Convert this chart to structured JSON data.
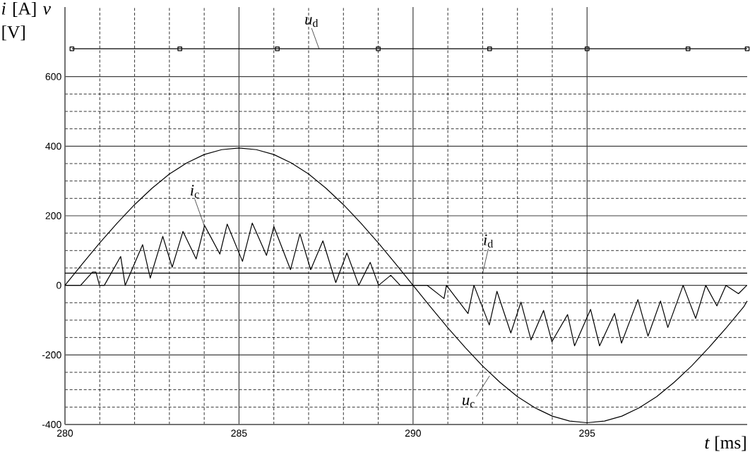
{
  "chart_data": {
    "type": "line",
    "xlabel": "*t* [ms]",
    "ylabel": "*i* [A] *v* [V]",
    "xlim": [
      280,
      299.6
    ],
    "ylim": [
      -400,
      800
    ],
    "xticks": [
      280,
      285,
      290,
      295
    ],
    "yticks": [
      -400,
      -200,
      0,
      200,
      400,
      600
    ],
    "grid": true,
    "line_style": "solid",
    "series": [
      {
        "color": "#000000",
        "marker": "square",
        "x": [
          280.2,
          283.3,
          286.1,
          289.0,
          292.2,
          295.0,
          297.9,
          299.6
        ],
        "values": [
          680,
          680,
          680,
          680,
          680,
          680,
          680,
          680
        ]
      },
      {
        "color": "#000000",
        "marker": "none",
        "x": [
          280,
          281,
          282,
          283,
          284,
          285,
          286,
          287,
          288,
          289,
          290,
          291,
          292,
          293,
          294,
          295,
          296,
          297,
          298,
          299,
          299.6
        ],
        "values": [
          35,
          35,
          35,
          35,
          35,
          35,
          35,
          35,
          35,
          35,
          35,
          35,
          35,
          35,
          35,
          35,
          35,
          35,
          35,
          35,
          35
        ]
      },
      {
        "color": "#000000",
        "marker": "none",
        "x": [
          280,
          280.5,
          281,
          281.5,
          282,
          282.5,
          283,
          283.5,
          284,
          284.5,
          285,
          285.5,
          286,
          286.5,
          287,
          287.5,
          288,
          288.5,
          289,
          289.5,
          290,
          290.5,
          291,
          291.5,
          292,
          292.5,
          293,
          293.5,
          294,
          294.5,
          295,
          295.5,
          296,
          296.5,
          297,
          297.5,
          298,
          298.5,
          299,
          299.5,
          299.6
        ],
        "values": [
          0,
          62,
          122,
          179,
          232,
          279,
          320,
          352,
          376,
          390,
          395,
          390,
          376,
          352,
          320,
          279,
          232,
          179,
          122,
          62,
          0,
          -62,
          -122,
          -179,
          -232,
          -279,
          -320,
          -352,
          -376,
          -390,
          -395,
          -390,
          -376,
          -352,
          -320,
          -279,
          -232,
          -179,
          -122,
          -62,
          -45
        ]
      },
      {
        "color": "#000000",
        "marker": "none",
        "x": [
          280,
          280.45,
          280.79,
          280.89,
          280.99,
          281.13,
          281.6,
          281.73,
          282.23,
          282.45,
          282.81,
          283.08,
          283.39,
          283.77,
          284.01,
          284.14,
          284.45,
          284.66,
          285.1,
          285.38,
          285.79,
          286.0,
          286.48,
          286.75,
          287.06,
          287.41,
          287.78,
          288.1,
          288.44,
          288.77,
          289.01,
          289.36,
          289.63,
          290.04,
          290.41,
          290.89,
          290.96,
          291.58,
          291.75,
          292.19,
          292.41,
          292.81,
          293.1,
          293.39,
          293.75,
          293.99,
          294.44,
          294.64,
          295.1,
          295.36,
          295.79,
          295.99,
          296.46,
          296.75,
          297.11,
          297.32,
          297.76,
          298.12,
          298.41,
          298.73,
          298.99,
          299.35,
          299.59
        ],
        "values": [
          0,
          0,
          38,
          38,
          0,
          0,
          83,
          0,
          117,
          21,
          141,
          52,
          155,
          76,
          172,
          148,
          90,
          176,
          69,
          179,
          86,
          169,
          45,
          148,
          45,
          128,
          8,
          93,
          0,
          66,
          0,
          29,
          0,
          0,
          0,
          -38,
          0,
          -81,
          0,
          -114,
          -17,
          -137,
          -48,
          -157,
          -72,
          -162,
          -84,
          -174,
          -69,
          -174,
          -81,
          -166,
          -41,
          -146,
          -45,
          -121,
          0,
          -95,
          0,
          -59,
          0,
          -24,
          0
        ]
      }
    ],
    "annotations": [
      {
        "text": "*u*$_{d}$",
        "x": 287.3,
        "y": 680
      },
      {
        "text": "*i*$_{c}$",
        "x": 284.0,
        "y": 172
      },
      {
        "text": "*i*$_{d}$",
        "x": 292.0,
        "y": 35
      },
      {
        "text": "*u*$_{c}$",
        "x": 292.2,
        "y": -260
      }
    ]
  }
}
